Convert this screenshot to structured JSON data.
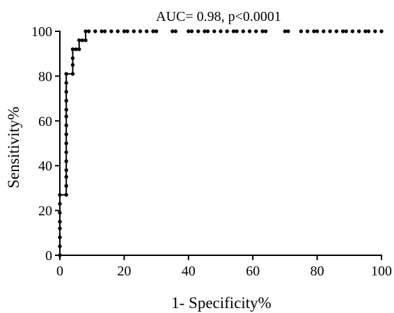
{
  "chart_data": {
    "type": "line",
    "title": "AUC= 0.98, p<0.0001",
    "xlabel": "1- Specificity%",
    "ylabel": "Sensitivity%",
    "xlim": [
      0,
      100
    ],
    "ylim": [
      0,
      100
    ],
    "x_ticks": [
      "0",
      "20",
      "40",
      "60",
      "80",
      "100"
    ],
    "y_ticks": [
      "0",
      "20",
      "40",
      "60",
      "80",
      "100"
    ],
    "grid": false,
    "legend": "none",
    "marker": "filled-circle",
    "series": [
      {
        "points": [
          [
            0,
            0
          ],
          [
            0,
            4
          ],
          [
            0,
            8
          ],
          [
            0,
            12
          ],
          [
            0,
            15
          ],
          [
            0,
            19
          ],
          [
            0,
            23
          ],
          [
            0,
            27
          ],
          [
            2,
            27
          ],
          [
            2,
            31
          ],
          [
            2,
            35
          ],
          [
            2,
            38
          ],
          [
            2,
            42
          ],
          [
            2,
            46
          ],
          [
            2,
            50
          ],
          [
            2,
            54
          ],
          [
            2,
            58
          ],
          [
            2,
            62
          ],
          [
            2,
            65
          ],
          [
            2,
            69
          ],
          [
            2,
            73
          ],
          [
            2,
            77
          ],
          [
            2,
            81
          ],
          [
            4,
            81
          ],
          [
            4,
            85
          ],
          [
            4,
            88
          ],
          [
            4,
            92
          ],
          [
            5,
            92
          ],
          [
            6,
            92
          ],
          [
            6,
            96
          ],
          [
            7,
            96
          ],
          [
            8,
            96
          ],
          [
            8,
            100
          ],
          [
            9,
            100
          ],
          [
            11,
            100
          ],
          [
            13,
            100
          ],
          [
            14,
            100
          ],
          [
            16,
            100
          ],
          [
            18,
            100
          ],
          [
            20,
            100
          ],
          [
            21,
            100
          ],
          [
            23,
            100
          ],
          [
            25,
            100
          ],
          [
            27,
            100
          ],
          [
            29,
            100
          ],
          [
            30,
            100
          ],
          [
            35,
            100
          ],
          [
            36,
            100
          ],
          [
            40,
            100
          ],
          [
            41,
            100
          ],
          [
            43,
            100
          ],
          [
            45,
            100
          ],
          [
            46,
            100
          ],
          [
            48,
            100
          ],
          [
            50,
            100
          ],
          [
            52,
            100
          ],
          [
            54,
            100
          ],
          [
            55,
            100
          ],
          [
            57,
            100
          ],
          [
            59,
            100
          ],
          [
            61,
            100
          ],
          [
            63,
            100
          ],
          [
            64,
            100
          ],
          [
            70,
            100
          ],
          [
            71,
            100
          ],
          [
            75,
            100
          ],
          [
            77,
            100
          ],
          [
            79,
            100
          ],
          [
            80,
            100
          ],
          [
            82,
            100
          ],
          [
            84,
            100
          ],
          [
            86,
            100
          ],
          [
            88,
            100
          ],
          [
            89,
            100
          ],
          [
            91,
            100
          ],
          [
            93,
            100
          ],
          [
            95,
            100
          ],
          [
            96,
            100
          ],
          [
            98,
            100
          ],
          [
            100,
            100
          ]
        ]
      }
    ]
  },
  "colors": {
    "line": "#000000",
    "marker": "#000000",
    "axis": "#000000"
  }
}
